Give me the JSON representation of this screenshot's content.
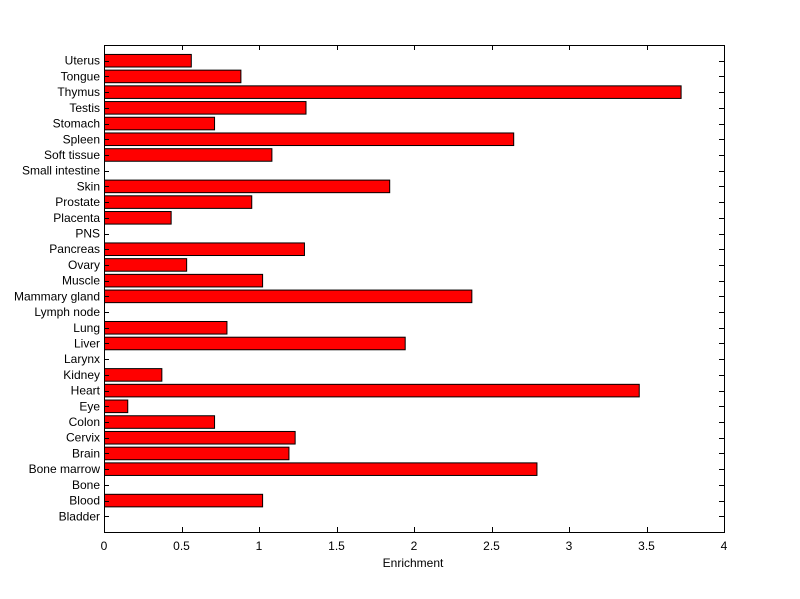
{
  "chart_data": {
    "type": "bar",
    "orientation": "horizontal",
    "categories": [
      "Bladder",
      "Blood",
      "Bone",
      "Bone marrow",
      "Brain",
      "Cervix",
      "Colon",
      "Eye",
      "Heart",
      "Kidney",
      "Larynx",
      "Liver",
      "Lung",
      "Lymph node",
      "Mammary gland",
      "Muscle",
      "Ovary",
      "Pancreas",
      "PNS",
      "Placenta",
      "Prostate",
      "Skin",
      "Small intestine",
      "Soft tissue",
      "Spleen",
      "Stomach",
      "Testis",
      "Thymus",
      "Tongue",
      "Uterus"
    ],
    "values": [
      0,
      1.02,
      0,
      2.79,
      1.19,
      1.23,
      0.71,
      0.15,
      3.45,
      0.37,
      0,
      1.94,
      0.79,
      0,
      2.37,
      1.02,
      0.53,
      1.29,
      0,
      0.43,
      0.95,
      1.84,
      0,
      1.08,
      2.64,
      0.71,
      1.3,
      3.72,
      0.88,
      0.56
    ],
    "xlabel": "Enrichment",
    "ylabel": "",
    "title": "",
    "xlim": [
      0,
      4
    ],
    "xticks": [
      "0",
      "0.5",
      "1",
      "1.5",
      "2",
      "2.5",
      "3",
      "3.5",
      "4"
    ],
    "bar_color": "#ff0000",
    "grid": false,
    "legend": "none"
  }
}
